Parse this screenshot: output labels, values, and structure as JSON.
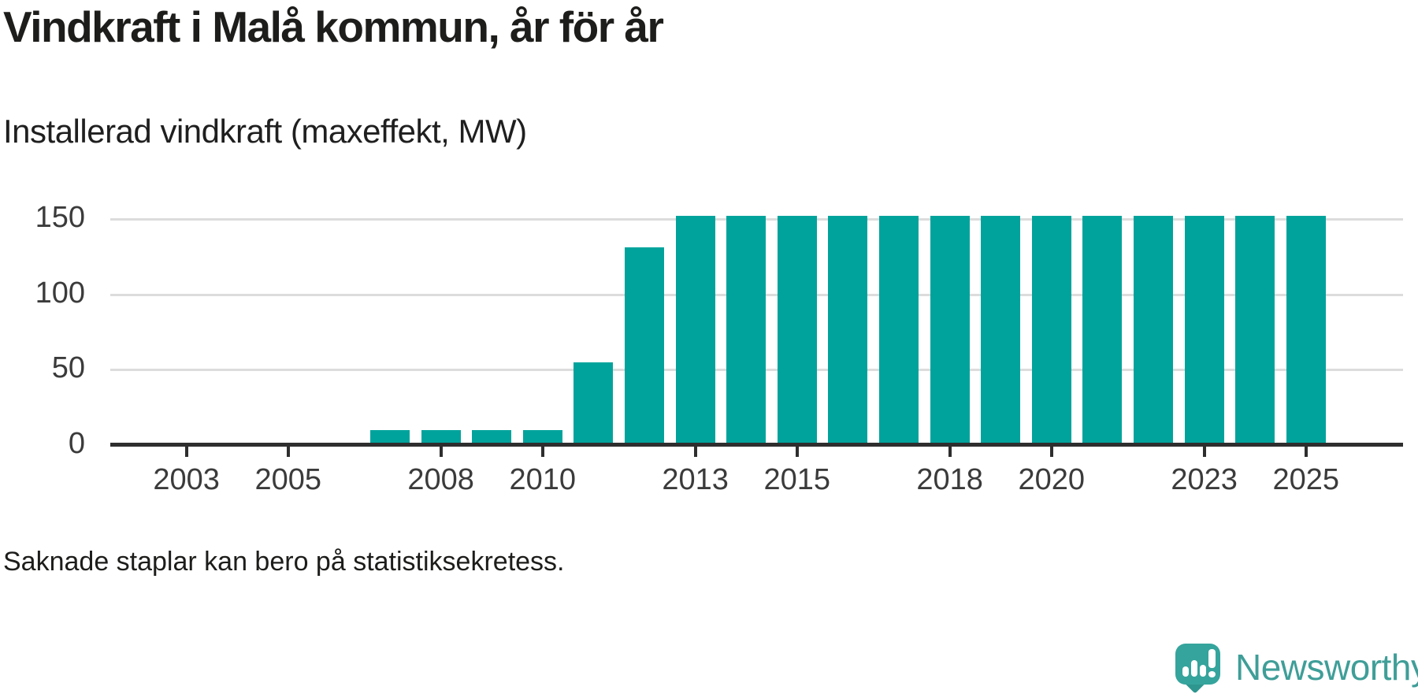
{
  "header": {
    "title": "Vindkraft i Malå kommun, år för år",
    "subtitle": "Installerad vindkraft (maxeffekt, MW)"
  },
  "footnote": "Saknade staplar kan bero på statistiksekretess.",
  "brand": {
    "name": "Newsworthy",
    "icon": "speech-bubble-bar-chart-icon",
    "text_color": "#3f9e98",
    "icon_color": "#35a49c",
    "icon_color_dark": "#2e968f"
  },
  "colors": {
    "bar": "#00a39c",
    "axis_line": "#2e2e2e",
    "gridline": "#dcdcdc",
    "title_text": "#1d1d1b",
    "axis_text": "#3b3b3b"
  },
  "chart_data": {
    "type": "bar",
    "title": "Vindkraft i Malå kommun, år för år",
    "subtitle": "Installerad vindkraft (maxeffekt, MW)",
    "xlabel": "",
    "ylabel": "Installerad vindkraft (maxeffekt, MW)",
    "unit": "MW",
    "categories": [
      2002,
      2003,
      2004,
      2005,
      2006,
      2007,
      2008,
      2009,
      2010,
      2011,
      2012,
      2013,
      2014,
      2015,
      2016,
      2017,
      2018,
      2019,
      2020,
      2021,
      2022,
      2023,
      2024,
      2025
    ],
    "values": [
      null,
      null,
      null,
      null,
      null,
      10,
      10,
      10,
      10,
      55,
      131,
      152,
      152,
      152,
      152,
      152,
      152,
      152,
      152,
      152,
      152,
      152,
      152,
      152
    ],
    "missing_note": "Saknade staplar kan bero på statistiksekretess.",
    "ylim": [
      0,
      160
    ],
    "yticks": [
      0,
      50,
      100,
      150
    ],
    "xticks": [
      2003,
      2005,
      2008,
      2010,
      2013,
      2015,
      2018,
      2020,
      2023,
      2025
    ],
    "grid": "horizontal",
    "legend": "none",
    "bar_color": "#00a39c"
  }
}
